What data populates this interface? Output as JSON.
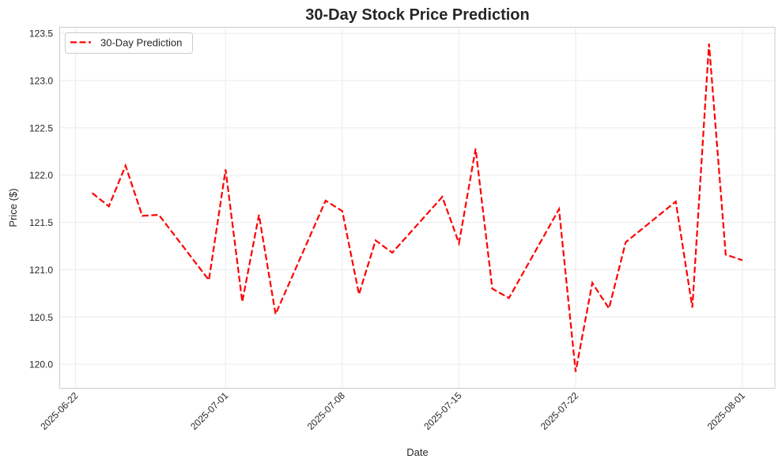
{
  "chart_data": {
    "type": "line",
    "title": "30-Day Stock Price Prediction",
    "xlabel": "Date",
    "ylabel": "Price ($)",
    "x_tick_labels": [
      "2025-06-22",
      "2025-07-01",
      "2025-07-08",
      "2025-07-15",
      "2025-07-22",
      "2025-08-01"
    ],
    "y_tick_labels": [
      "120.0",
      "120.5",
      "121.0",
      "121.5",
      "122.0",
      "122.5",
      "123.0",
      "123.5"
    ],
    "grid": true,
    "legend_position": "top-left",
    "series": [
      {
        "name": "30-Day Prediction",
        "color": "#ff0000",
        "line_style": "dashed",
        "x": [
          "2025-06-23",
          "2025-06-24",
          "2025-06-25",
          "2025-06-26",
          "2025-06-27",
          "2025-06-30",
          "2025-07-01",
          "2025-07-02",
          "2025-07-03",
          "2025-07-04",
          "2025-07-07",
          "2025-07-08",
          "2025-07-09",
          "2025-07-10",
          "2025-07-11",
          "2025-07-14",
          "2025-07-15",
          "2025-07-16",
          "2025-07-17",
          "2025-07-18",
          "2025-07-21",
          "2025-07-22",
          "2025-07-23",
          "2025-07-24",
          "2025-07-25",
          "2025-07-28",
          "2025-07-29",
          "2025-07-30",
          "2025-07-31",
          "2025-08-01"
        ],
        "y": [
          121.81,
          121.67,
          122.1,
          121.57,
          121.58,
          120.89,
          122.06,
          120.66,
          121.58,
          120.53,
          121.73,
          121.62,
          120.74,
          121.31,
          121.18,
          121.77,
          121.28,
          122.28,
          120.8,
          120.7,
          121.64,
          119.92,
          120.86,
          120.59,
          121.29,
          121.72,
          120.6,
          123.39,
          121.16,
          121.1
        ]
      }
    ]
  }
}
